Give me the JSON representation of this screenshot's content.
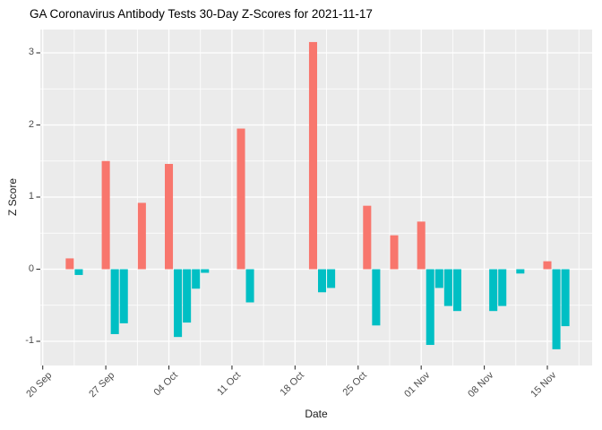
{
  "chart_data": {
    "type": "bar",
    "title": "GA Coronavirus Antibody Tests 30-Day Z-Scores for 2021-11-17",
    "xlabel": "Date",
    "ylabel": "Z Score",
    "legend_position": "none",
    "grid": true,
    "ylim": [
      -1.35,
      3.33
    ],
    "yticks": [
      -1,
      0,
      1,
      2,
      3
    ],
    "y_tick_labels": [
      "-1",
      "0",
      "1",
      "2",
      "3"
    ],
    "x_ticks": [
      {
        "label": "20 Sep",
        "date": "2021-09-20"
      },
      {
        "label": "27 Sep",
        "date": "2021-09-27"
      },
      {
        "label": "04 Oct",
        "date": "2021-10-04"
      },
      {
        "label": "11 Oct",
        "date": "2021-10-11"
      },
      {
        "label": "18 Oct",
        "date": "2021-10-18"
      },
      {
        "label": "25 Oct",
        "date": "2021-10-25"
      },
      {
        "label": "01 Nov",
        "date": "2021-11-01"
      },
      {
        "label": "08 Nov",
        "date": "2021-11-08"
      },
      {
        "label": "15 Nov",
        "date": "2021-11-15"
      }
    ],
    "bars": [
      {
        "date": "2021-09-23",
        "value": 0.15
      },
      {
        "date": "2021-09-24",
        "value": -0.08
      },
      {
        "date": "2021-09-27",
        "value": 1.5
      },
      {
        "date": "2021-09-28",
        "value": -0.9
      },
      {
        "date": "2021-09-29",
        "value": -0.75
      },
      {
        "date": "2021-10-01",
        "value": 0.92
      },
      {
        "date": "2021-10-04",
        "value": 1.46
      },
      {
        "date": "2021-10-05",
        "value": -0.94
      },
      {
        "date": "2021-10-06",
        "value": -0.74
      },
      {
        "date": "2021-10-07",
        "value": -0.27
      },
      {
        "date": "2021-10-08",
        "value": -0.05
      },
      {
        "date": "2021-10-12",
        "value": 1.95
      },
      {
        "date": "2021-10-13",
        "value": -0.46
      },
      {
        "date": "2021-10-20",
        "value": 3.15
      },
      {
        "date": "2021-10-21",
        "value": -0.32
      },
      {
        "date": "2021-10-22",
        "value": -0.26
      },
      {
        "date": "2021-10-26",
        "value": 0.88
      },
      {
        "date": "2021-10-27",
        "value": -0.78
      },
      {
        "date": "2021-10-29",
        "value": 0.47
      },
      {
        "date": "2021-11-01",
        "value": 0.66
      },
      {
        "date": "2021-11-02",
        "value": -1.05
      },
      {
        "date": "2021-11-03",
        "value": -0.26
      },
      {
        "date": "2021-11-04",
        "value": -0.51
      },
      {
        "date": "2021-11-05",
        "value": -0.58
      },
      {
        "date": "2021-11-09",
        "value": -0.58
      },
      {
        "date": "2021-11-10",
        "value": -0.51
      },
      {
        "date": "2021-11-12",
        "value": -0.06
      },
      {
        "date": "2021-11-15",
        "value": 0.11
      },
      {
        "date": "2021-11-16",
        "value": -1.11
      },
      {
        "date": "2021-11-17",
        "value": -0.79
      }
    ],
    "colors": {
      "positive": "#F8766D",
      "negative": "#00BFC4",
      "panel": "#EBEBEB",
      "grid": "#FFFFFF",
      "tick_mark": "#333333",
      "tick_label": "#4d4d4d",
      "title": "#000000"
    }
  }
}
